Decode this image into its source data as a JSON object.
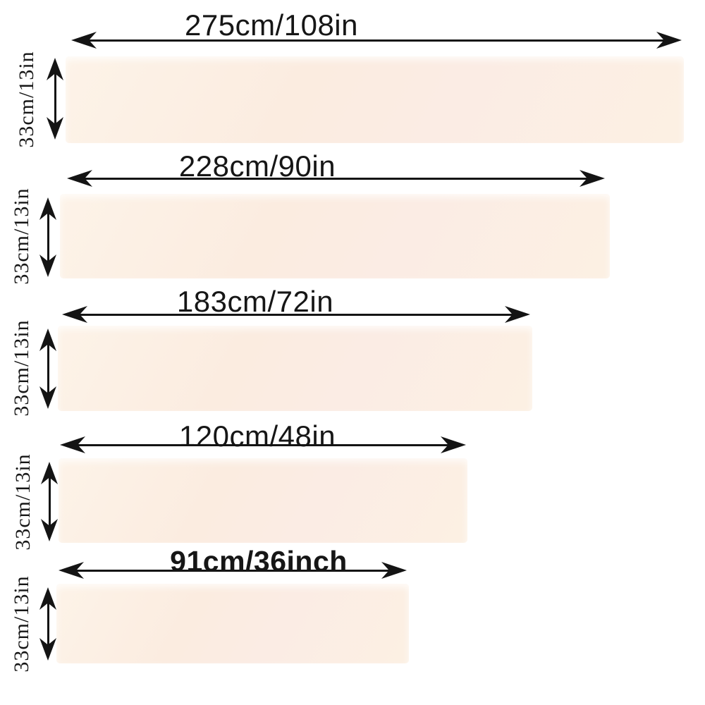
{
  "page": {
    "background": "#ffffff",
    "description_colors": {
      "bar_fill": "#fbece2",
      "arrow": "#141414",
      "text": "#161616"
    }
  },
  "rows": [
    {
      "width_label": "275cm/108in",
      "height_label": "33cm/13in"
    },
    {
      "width_label": "228cm/90in",
      "height_label": "33cm/13in"
    },
    {
      "width_label": "183cm/72in",
      "height_label": "33cm/13in"
    },
    {
      "width_label": "120cm/48in",
      "height_label": "33cm/13in"
    },
    {
      "width_label": "91cm/36inch",
      "height_label": "33cm/13in"
    }
  ]
}
